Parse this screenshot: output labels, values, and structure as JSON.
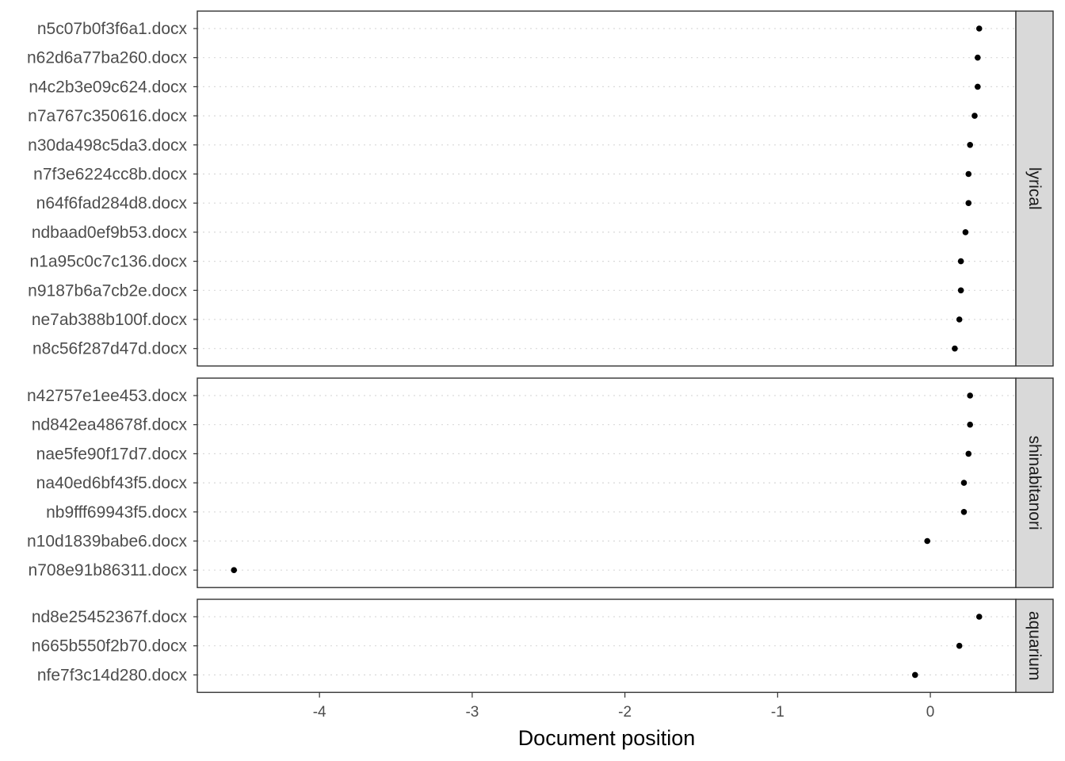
{
  "chart_data": {
    "type": "scatter",
    "xlabel": "Document position",
    "ylabel": "",
    "xlim": [
      -4.8,
      0.56
    ],
    "x_ticks": [
      -4,
      -3,
      -2,
      -1,
      0
    ],
    "x_tick_labels": [
      "-4",
      "-3",
      "-2",
      "-1",
      "0"
    ],
    "grid": "dotted horizontal gridlines at each document",
    "facets": [
      {
        "name": "lyrical",
        "points": [
          {
            "label": "n5c07b0f3f6a1.docx",
            "x": 0.32
          },
          {
            "label": "n62d6a77ba260.docx",
            "x": 0.31
          },
          {
            "label": "n4c2b3e09c624.docx",
            "x": 0.31
          },
          {
            "label": "n7a767c350616.docx",
            "x": 0.29
          },
          {
            "label": "n30da498c5da3.docx",
            "x": 0.26
          },
          {
            "label": "n7f3e6224cc8b.docx",
            "x": 0.25
          },
          {
            "label": "n64f6fad284d8.docx",
            "x": 0.25
          },
          {
            "label": "ndbaad0ef9b53.docx",
            "x": 0.23
          },
          {
            "label": "n1a95c0c7c136.docx",
            "x": 0.2
          },
          {
            "label": "n9187b6a7cb2e.docx",
            "x": 0.2
          },
          {
            "label": "ne7ab388b100f.docx",
            "x": 0.19
          },
          {
            "label": "n8c56f287d47d.docx",
            "x": 0.16
          }
        ]
      },
      {
        "name": "shinabitanori",
        "points": [
          {
            "label": "n42757e1ee453.docx",
            "x": 0.26
          },
          {
            "label": "nd842ea48678f.docx",
            "x": 0.26
          },
          {
            "label": "nae5fe90f17d7.docx",
            "x": 0.25
          },
          {
            "label": "na40ed6bf43f5.docx",
            "x": 0.22
          },
          {
            "label": "nb9fff69943f5.docx",
            "x": 0.22
          },
          {
            "label": "n10d1839babe6.docx",
            "x": -0.02
          },
          {
            "label": "n708e91b86311.docx",
            "x": -4.56
          }
        ]
      },
      {
        "name": "aquarium",
        "points": [
          {
            "label": "nd8e25452367f.docx",
            "x": 0.32
          },
          {
            "label": "n665b550f2b70.docx",
            "x": 0.19
          },
          {
            "label": "nfe7f3c14d280.docx",
            "x": -0.1
          }
        ]
      }
    ]
  },
  "colors": {
    "point": "#000000",
    "panel_border": "#333333",
    "strip_fill": "#d9d9d9",
    "gridline": "#d9d9d9",
    "tick_text": "#4d4d4d"
  }
}
